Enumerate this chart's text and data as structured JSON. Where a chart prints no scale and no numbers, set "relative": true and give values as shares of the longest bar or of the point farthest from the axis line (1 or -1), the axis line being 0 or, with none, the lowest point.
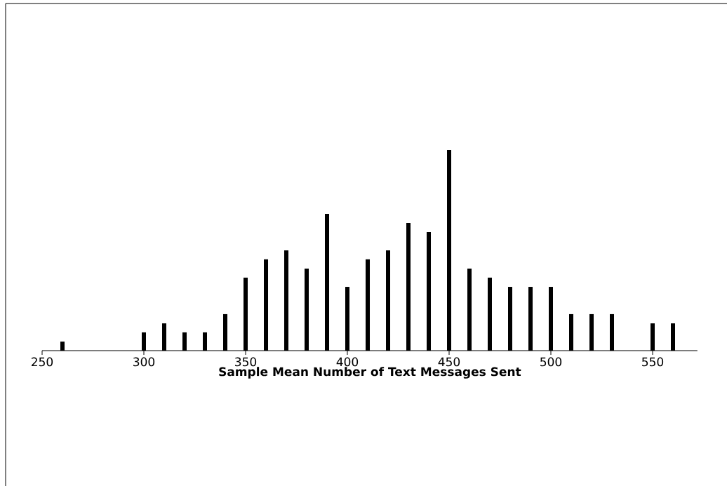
{
  "chart_data": {
    "type": "bar",
    "xlabel": "Sample Mean Number of Text Messages Sent",
    "relative": true,
    "x": [
      260,
      300,
      310,
      320,
      330,
      340,
      350,
      360,
      370,
      380,
      390,
      400,
      410,
      420,
      430,
      440,
      450,
      460,
      470,
      480,
      490,
      500,
      510,
      520,
      530,
      550,
      560
    ],
    "values": [
      0.045,
      0.091,
      0.136,
      0.091,
      0.091,
      0.182,
      0.364,
      0.455,
      0.5,
      0.409,
      0.682,
      0.318,
      0.455,
      0.5,
      0.636,
      0.591,
      1,
      0.409,
      0.364,
      0.318,
      0.318,
      0.318,
      0.182,
      0.182,
      0.182,
      0.136,
      0.136
    ],
    "color": "#000000",
    "xlim": [
      250,
      572
    ],
    "xticks": [
      250,
      300,
      350,
      400,
      450,
      500,
      550
    ],
    "tick_labels": "x"
  }
}
